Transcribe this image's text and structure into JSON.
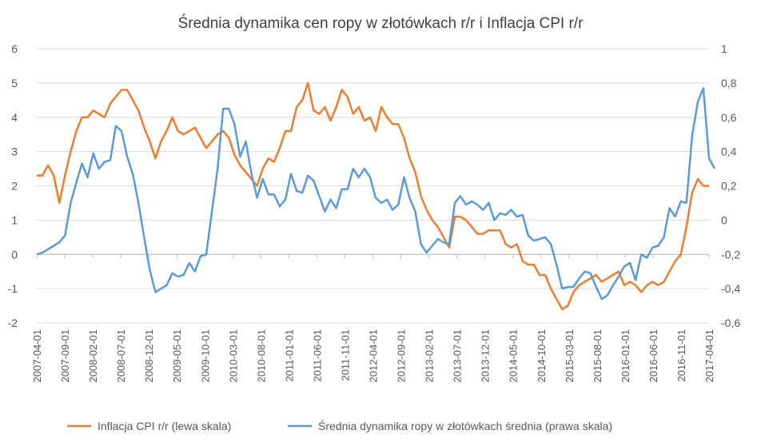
{
  "chart_data": {
    "type": "line",
    "title": "Średnia dynamika cen ropy w złotówkach r/r i Inflacja CPI r/r",
    "y_left": {
      "range": [
        -2,
        6
      ],
      "ticks": [
        -2,
        -1,
        0,
        1,
        2,
        3,
        4,
        5,
        6
      ],
      "tick_labels": [
        "-2",
        "-1",
        "0",
        "1",
        "2",
        "3",
        "4",
        "5",
        "6"
      ]
    },
    "y_right": {
      "range": [
        -0.6,
        1.0
      ],
      "ticks": [
        -0.6,
        -0.4,
        -0.2,
        0,
        0.2,
        0.4,
        0.6,
        0.8,
        1.0
      ],
      "tick_labels": [
        "-0,6",
        "-0,4",
        "-0,2",
        "0",
        "0,2",
        "0,4",
        "0,6",
        "0,8",
        "1"
      ]
    },
    "x_tick_labels": [
      "2007-04-01",
      "2007-09-01",
      "2008-02-01",
      "2008-07-01",
      "2008-12-01",
      "2009-05-01",
      "2009-10-01",
      "2010-03-01",
      "2010-08-01",
      "2011-01-01",
      "2011-06-01",
      "2011-11-01",
      "2012-04-01",
      "2012-09-01",
      "2013-02-01",
      "2013-07-01",
      "2013-12-01",
      "2014-05-01",
      "2014-10-01",
      "2015-03-01",
      "2015-08-01",
      "2016-01-01",
      "2016-06-01",
      "2016-11-01",
      "2017-04-01"
    ],
    "legend_position": "bottom",
    "grid": "horizontal",
    "series": [
      {
        "name": "Inflacja CPI r/r (lewa skala)",
        "axis": "left",
        "color": "#ed7d31",
        "values": [
          2.3,
          2.3,
          2.6,
          2.3,
          1.5,
          2.3,
          3.0,
          3.6,
          4.0,
          4.0,
          4.2,
          4.1,
          4.0,
          4.4,
          4.6,
          4.8,
          4.8,
          4.5,
          4.2,
          3.7,
          3.3,
          2.8,
          3.3,
          3.6,
          4.0,
          3.6,
          3.5,
          3.6,
          3.7,
          3.4,
          3.1,
          3.3,
          3.5,
          3.6,
          3.4,
          2.9,
          2.6,
          2.4,
          2.2,
          2.0,
          2.5,
          2.8,
          2.7,
          3.1,
          3.6,
          3.6,
          4.3,
          4.5,
          5.0,
          4.2,
          4.1,
          4.3,
          3.9,
          4.3,
          4.8,
          4.6,
          4.1,
          4.3,
          3.9,
          4.0,
          3.6,
          4.3,
          4.0,
          3.8,
          3.8,
          3.4,
          2.8,
          2.4,
          1.7,
          1.3,
          1.0,
          0.8,
          0.5,
          0.2,
          1.1,
          1.1,
          1.0,
          0.8,
          0.6,
          0.6,
          0.7,
          0.7,
          0.7,
          0.3,
          0.2,
          0.3,
          -0.2,
          -0.3,
          -0.3,
          -0.6,
          -0.6,
          -1.0,
          -1.3,
          -1.6,
          -1.5,
          -1.1,
          -0.9,
          -0.8,
          -0.7,
          -0.6,
          -0.8,
          -0.7,
          -0.6,
          -0.5,
          -0.9,
          -0.8,
          -0.9,
          -1.1,
          -0.9,
          -0.8,
          -0.9,
          -0.8,
          -0.5,
          -0.2,
          0.0,
          0.8,
          1.8,
          2.2,
          2.0,
          2.0
        ]
      },
      {
        "name": "Średnia dynamika ropy w złotówkach średnia (prawa skala)",
        "axis": "right",
        "color": "#5b9bd5",
        "values": [
          -0.2,
          -0.19,
          -0.17,
          -0.15,
          -0.13,
          -0.09,
          0.1,
          0.22,
          0.33,
          0.25,
          0.39,
          0.3,
          0.34,
          0.35,
          0.55,
          0.52,
          0.37,
          0.27,
          0.1,
          -0.1,
          -0.29,
          -0.42,
          -0.4,
          -0.38,
          -0.31,
          -0.33,
          -0.32,
          -0.25,
          -0.3,
          -0.21,
          -0.2,
          0.05,
          0.3,
          0.65,
          0.65,
          0.56,
          0.37,
          0.46,
          0.27,
          0.13,
          0.24,
          0.15,
          0.15,
          0.08,
          0.12,
          0.27,
          0.17,
          0.16,
          0.26,
          0.23,
          0.14,
          0.05,
          0.12,
          0.07,
          0.18,
          0.18,
          0.3,
          0.25,
          0.3,
          0.25,
          0.13,
          0.1,
          0.12,
          0.06,
          0.09,
          0.25,
          0.13,
          0.05,
          -0.14,
          -0.19,
          -0.15,
          -0.11,
          -0.13,
          -0.14,
          0.1,
          0.14,
          0.09,
          0.11,
          0.09,
          0.06,
          0.1,
          0.0,
          0.04,
          0.03,
          0.06,
          0.02,
          0.03,
          -0.09,
          -0.12,
          -0.11,
          -0.1,
          -0.14,
          -0.26,
          -0.4,
          -0.39,
          -0.39,
          -0.34,
          -0.3,
          -0.31,
          -0.39,
          -0.46,
          -0.44,
          -0.38,
          -0.33,
          -0.27,
          -0.25,
          -0.35,
          -0.2,
          -0.22,
          -0.16,
          -0.15,
          -0.1,
          0.07,
          0.02,
          0.11,
          0.1,
          0.49,
          0.69,
          0.77,
          0.36,
          0.3
        ]
      }
    ]
  }
}
